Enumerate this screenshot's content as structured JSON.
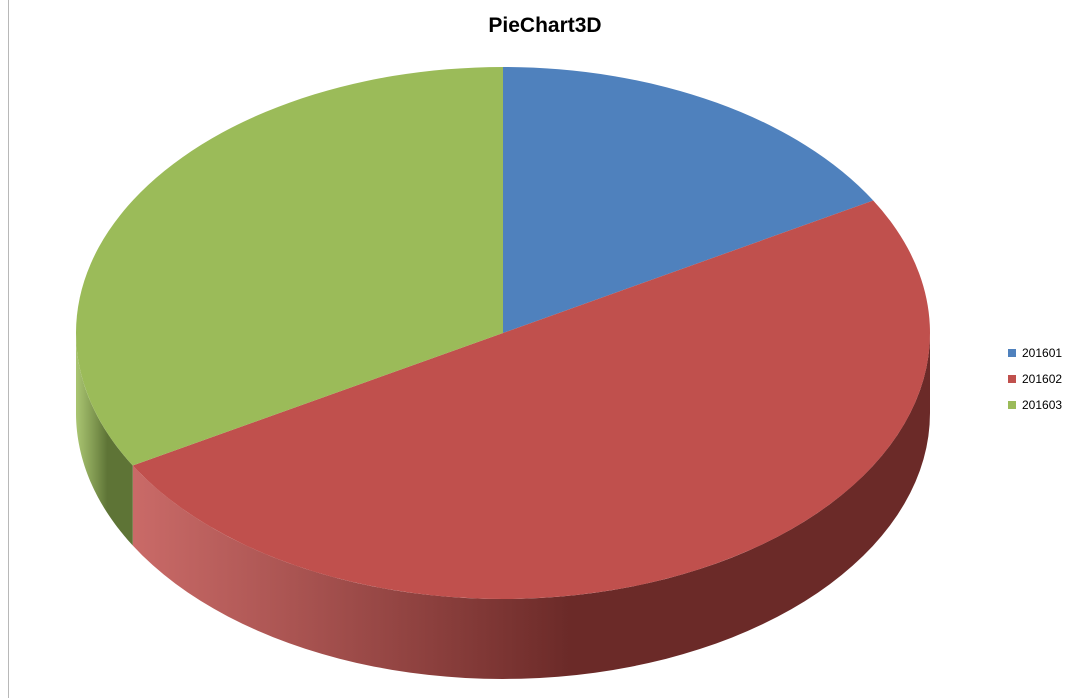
{
  "chart_data": {
    "type": "pie",
    "title": "PieChart3D",
    "labels": [
      "201601",
      "201602",
      "201603"
    ],
    "values": [
      16.7,
      50.0,
      33.3
    ],
    "colors": [
      "#4F81BD",
      "#C0504D",
      "#9BBB59"
    ],
    "side_colors": [
      "#2E4A6E",
      "#6B2A28",
      "#5E7436"
    ],
    "three_d": true,
    "legend_position": "right"
  }
}
